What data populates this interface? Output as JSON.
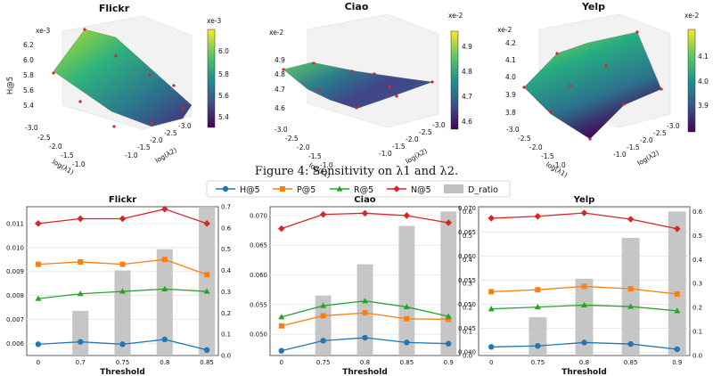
{
  "top": {
    "caption": "Figure 4: Sensitivity on λ1 and λ2.",
    "panels": [
      {
        "title": "Flickr",
        "zlabel": "H@5",
        "scale": "xe-3",
        "zticks": [
          "5.4",
          "5.6",
          "5.8",
          "6.0",
          "6.2"
        ],
        "cbar_ticks": [
          "5.4",
          "5.6",
          "5.8",
          "6.0"
        ],
        "x1ticks": [
          "-3.0",
          "-2.5",
          "-2.0",
          "-1.5",
          "-1.0"
        ],
        "x2ticks": [
          "-1.0",
          "-1.5",
          "-2.0",
          "-2.5",
          "-3.0"
        ],
        "x1label": "log(λ1)",
        "x2label": "log(λ2)"
      },
      {
        "title": "Ciao",
        "zlabel": "",
        "scale": "xe-2",
        "zticks": [
          "4.6",
          "4.7",
          "4.8",
          "4.9"
        ],
        "cbar_ticks": [
          "4.6",
          "4.7",
          "4.8",
          "4.9"
        ],
        "x1ticks": [
          "-3.0",
          "-2.5",
          "-2.0",
          "-1.5",
          "-1.0"
        ],
        "x2ticks": [
          "-1.0",
          "-1.5",
          "-2.0",
          "-2.5",
          "-3.0"
        ],
        "x1label": "log(λ1)",
        "x2label": "log(λ2)"
      },
      {
        "title": "Yelp",
        "zlabel": "",
        "scale": "xe-2",
        "zticks": [
          "3.8",
          "3.9",
          "4.0",
          "4.1",
          "4.2"
        ],
        "cbar_ticks": [
          "3.9",
          "4.0",
          "4.1"
        ],
        "x1ticks": [
          "-3.0",
          "-2.5",
          "-2.0",
          "-1.5",
          "-1.0"
        ],
        "x2ticks": [
          "-1.0",
          "-1.5",
          "-2.0",
          "-2.5",
          "-3.0"
        ],
        "x1label": "log(λ1)",
        "x2label": "log(λ2)"
      }
    ]
  },
  "legend": [
    "H@5",
    "P@5",
    "R@5",
    "N@5",
    "D_ratio"
  ],
  "colors": {
    "H@5": "#1f77b4",
    "P@5": "#ff7f0e",
    "R@5": "#2ca02c",
    "N@5": "#d62728",
    "D_ratio": "#c0c0c0"
  },
  "chart_data": [
    {
      "type": "bar+line",
      "title": "Flickr",
      "xlabel": "Threshold",
      "categories": [
        "0",
        "0.7",
        "0.75",
        "0.8",
        "0.85"
      ],
      "ylim": [
        0.0055,
        0.0117
      ],
      "yticks": [
        "0.006",
        "0.007",
        "0.008",
        "0.009",
        "0.010",
        "0.011"
      ],
      "y2lim": [
        0,
        0.7
      ],
      "y2ticks": [
        "0.0",
        "0.1",
        "0.2",
        "0.3",
        "0.4",
        "0.5",
        "0.6",
        "0.7"
      ],
      "bars": {
        "name": "D_ratio",
        "values": [
          0,
          0.21,
          0.4,
          0.5,
          0.7
        ]
      },
      "series": [
        {
          "name": "H@5",
          "values": [
            0.00597,
            0.00607,
            0.00597,
            0.00617,
            0.00573
          ]
        },
        {
          "name": "P@5",
          "values": [
            0.0093,
            0.0094,
            0.0093,
            0.0095,
            0.00887
          ]
        },
        {
          "name": "R@5",
          "values": [
            0.00787,
            0.00807,
            0.00817,
            0.00827,
            0.00817
          ]
        },
        {
          "name": "N@5",
          "values": [
            0.011,
            0.0112,
            0.0112,
            0.0116,
            0.011
          ]
        }
      ]
    },
    {
      "type": "bar+line",
      "title": "Ciao",
      "xlabel": "Threshold",
      "categories": [
        "0",
        "0.75",
        "0.8",
        "0.85",
        "0.9"
      ],
      "ylim": [
        0.0464,
        0.0715
      ],
      "yticks": [
        "0.050",
        "0.055",
        "0.060",
        "0.065",
        "0.070"
      ],
      "y2lim": [
        0,
        0.62
      ],
      "y2ticks": [
        "0.0",
        "0.1",
        "0.2",
        "0.3",
        "0.4",
        "0.5",
        "0.6"
      ],
      "bars": {
        "name": "D_ratio",
        "values": [
          0,
          0.25,
          0.38,
          0.54,
          0.6
        ]
      },
      "series": [
        {
          "name": "H@5",
          "values": [
            0.0472,
            0.0489,
            0.0494,
            0.0486,
            0.0484
          ]
        },
        {
          "name": "P@5",
          "values": [
            0.0514,
            0.0531,
            0.0536,
            0.0526,
            0.0525
          ]
        },
        {
          "name": "R@5",
          "values": [
            0.0529,
            0.0548,
            0.0556,
            0.0546,
            0.053
          ]
        },
        {
          "name": "N@5",
          "values": [
            0.0678,
            0.0702,
            0.0704,
            0.07,
            0.0688
          ]
        }
      ]
    },
    {
      "type": "bar+line",
      "title": "Yelp",
      "xlabel": "Threshold",
      "categories": [
        "0",
        "0.75",
        "0.8",
        "0.85",
        "0.9"
      ],
      "ylim": [
        0.0393,
        0.0703
      ],
      "yticks": [
        "0.040",
        "0.045",
        "0.050",
        "0.055",
        "0.060",
        "0.065",
        "0.070"
      ],
      "y2lim": [
        0,
        0.62
      ],
      "y2ticks": [
        "0.0",
        "0.1",
        "0.2",
        "0.3",
        "0.4",
        "0.5",
        "0.6"
      ],
      "bars": {
        "name": "D_ratio",
        "values": [
          0,
          0.16,
          0.32,
          0.49,
          0.6
        ]
      },
      "series": [
        {
          "name": "H@5",
          "values": [
            0.0411,
            0.0413,
            0.042,
            0.0417,
            0.0406
          ]
        },
        {
          "name": "P@5",
          "values": [
            0.0526,
            0.053,
            0.0537,
            0.0532,
            0.0521
          ]
        },
        {
          "name": "R@5",
          "values": [
            0.049,
            0.0494,
            0.0498,
            0.0495,
            0.0486
          ]
        },
        {
          "name": "N@5",
          "values": [
            0.0679,
            0.0683,
            0.069,
            0.0677,
            0.0657
          ]
        }
      ]
    }
  ]
}
